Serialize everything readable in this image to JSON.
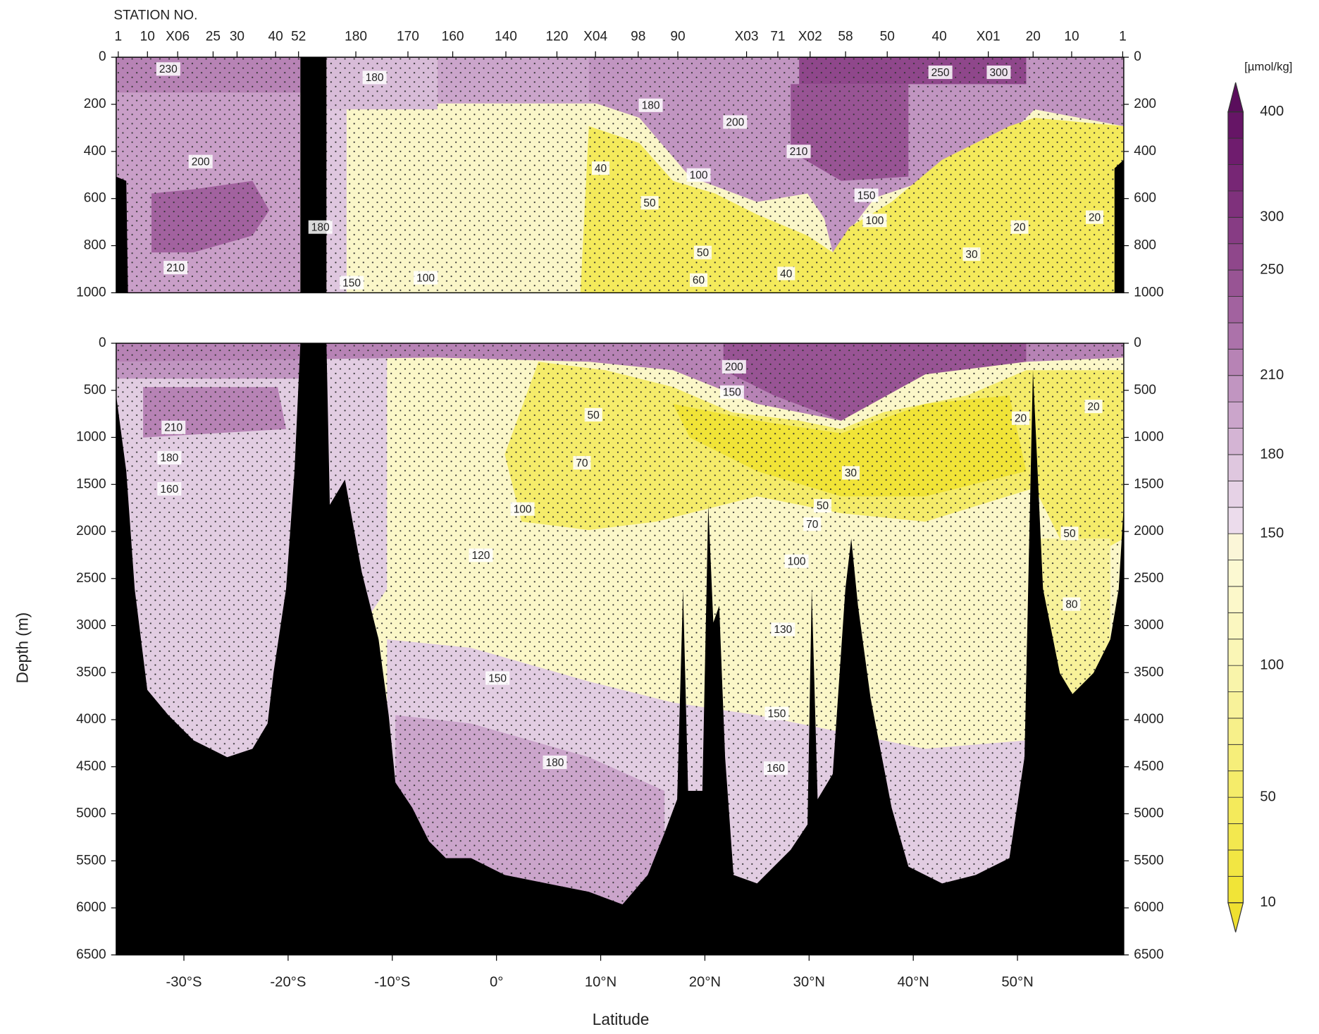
{
  "chart_data": [
    {
      "type": "contour",
      "x_label": "STATION NO.",
      "stations": [
        {
          "label": "1",
          "x": -36.3
        },
        {
          "label": "10",
          "x": -33.5
        },
        {
          "label": "X06",
          "x": -30.6
        },
        {
          "label": "25",
          "x": -27.2
        },
        {
          "label": "30",
          "x": -24.9
        },
        {
          "label": "40",
          "x": -21.2
        },
        {
          "label": "52",
          "x": -19.0
        },
        {
          "label": "180",
          "x": -13.5
        },
        {
          "label": "170",
          "x": -8.5
        },
        {
          "label": "160",
          "x": -4.2
        },
        {
          "label": "140",
          "x": 0.9
        },
        {
          "label": "120",
          "x": 5.8
        },
        {
          "label": "X04",
          "x": 9.5
        },
        {
          "label": "98",
          "x": 13.6
        },
        {
          "label": "90",
          "x": 17.4
        },
        {
          "label": "X03",
          "x": 24.0
        },
        {
          "label": "71",
          "x": 27.0
        },
        {
          "label": "X02",
          "x": 30.1
        },
        {
          "label": "58",
          "x": 33.5
        },
        {
          "label": "50",
          "x": 37.5
        },
        {
          "label": "40",
          "x": 42.5
        },
        {
          "label": "X01",
          "x": 47.2
        },
        {
          "label": "20",
          "x": 51.5
        },
        {
          "label": "10",
          "x": 55.2
        },
        {
          "label": "1",
          "x": 60.1
        }
      ],
      "xlim": [
        -36.5,
        60.2
      ],
      "ylim": [
        1000,
        0
      ],
      "yticks": [
        0,
        200,
        400,
        600,
        800,
        1000
      ],
      "contour_labels": [
        {
          "value": 230,
          "x": -31.5,
          "y": 50
        },
        {
          "value": 180,
          "x": -11.7,
          "y": 86
        },
        {
          "value": 250,
          "x": 42.6,
          "y": 64
        },
        {
          "value": 300,
          "x": 48.2,
          "y": 64
        },
        {
          "value": 180,
          "x": 14.8,
          "y": 204
        },
        {
          "value": 200,
          "x": 22.9,
          "y": 275
        },
        {
          "value": 210,
          "x": 29.0,
          "y": 400
        },
        {
          "value": 200,
          "x": -28.4,
          "y": 443
        },
        {
          "value": 40,
          "x": 10.0,
          "y": 471
        },
        {
          "value": 100,
          "x": 19.4,
          "y": 500
        },
        {
          "value": 150,
          "x": 35.5,
          "y": 586
        },
        {
          "value": 50,
          "x": 14.7,
          "y": 618
        },
        {
          "value": 100,
          "x": 36.3,
          "y": 693
        },
        {
          "value": 20,
          "x": 50.2,
          "y": 721
        },
        {
          "value": 20,
          "x": 57.4,
          "y": 679
        },
        {
          "value": 180,
          "x": -16.9,
          "y": 721
        },
        {
          "value": 50,
          "x": 19.8,
          "y": 829
        },
        {
          "value": 30,
          "x": 45.6,
          "y": 836
        },
        {
          "value": 210,
          "x": -30.8,
          "y": 893
        },
        {
          "value": 40,
          "x": 27.8,
          "y": 918
        },
        {
          "value": 100,
          "x": -6.8,
          "y": 936
        },
        {
          "value": 60,
          "x": 19.4,
          "y": 946
        },
        {
          "value": 150,
          "x": -13.9,
          "y": 957
        }
      ]
    },
    {
      "type": "contour",
      "x_label": "Latitude",
      "y_label": "Depth (m)",
      "xlim": [
        -36.5,
        60.2
      ],
      "xticks": [
        {
          "value": -30,
          "label": "-30°S"
        },
        {
          "value": -20,
          "label": "-20°S"
        },
        {
          "value": -10,
          "label": "-10°S"
        },
        {
          "value": 0,
          "label": "0°"
        },
        {
          "value": 10,
          "label": "10°N"
        },
        {
          "value": 20,
          "label": "20°N"
        },
        {
          "value": 30,
          "label": "30°N"
        },
        {
          "value": 40,
          "label": "40°N"
        },
        {
          "value": 50,
          "label": "50°N"
        }
      ],
      "ylim": [
        6500,
        0
      ],
      "yticks": [
        0,
        500,
        1000,
        1500,
        2000,
        2500,
        3000,
        3500,
        4000,
        4500,
        5000,
        5500,
        6000,
        6500
      ],
      "contour_labels": [
        {
          "value": 200,
          "x": 22.8,
          "y": 250
        },
        {
          "value": 150,
          "x": 22.6,
          "y": 519
        },
        {
          "value": 50,
          "x": 9.3,
          "y": 760
        },
        {
          "value": 20,
          "x": 50.3,
          "y": 796
        },
        {
          "value": 20,
          "x": 57.3,
          "y": 671
        },
        {
          "value": 210,
          "x": -31.0,
          "y": 894
        },
        {
          "value": 180,
          "x": -31.4,
          "y": 1216
        },
        {
          "value": 70,
          "x": 8.2,
          "y": 1270
        },
        {
          "value": 160,
          "x": -31.4,
          "y": 1547
        },
        {
          "value": 30,
          "x": 34.0,
          "y": 1377
        },
        {
          "value": 100,
          "x": 2.5,
          "y": 1761
        },
        {
          "value": 50,
          "x": 31.3,
          "y": 1726
        },
        {
          "value": 70,
          "x": 30.3,
          "y": 1922
        },
        {
          "value": 50,
          "x": 55.0,
          "y": 2021
        },
        {
          "value": 120,
          "x": -1.5,
          "y": 2253
        },
        {
          "value": 100,
          "x": 28.8,
          "y": 2316
        },
        {
          "value": 80,
          "x": 55.2,
          "y": 2772
        },
        {
          "value": 130,
          "x": 27.5,
          "y": 3040
        },
        {
          "value": 150,
          "x": 0.1,
          "y": 3558
        },
        {
          "value": 150,
          "x": 26.9,
          "y": 3934
        },
        {
          "value": 180,
          "x": 5.6,
          "y": 4453
        },
        {
          "value": 160,
          "x": 26.8,
          "y": 4515
        }
      ]
    },
    {
      "type": "colorbar",
      "title": "[µmol/kg]",
      "levels": [
        10,
        20,
        30,
        40,
        50,
        60,
        70,
        80,
        90,
        100,
        110,
        120,
        130,
        140,
        150,
        160,
        170,
        180,
        190,
        200,
        210,
        220,
        230,
        240,
        250,
        275,
        300,
        325,
        350,
        375,
        400
      ],
      "colors": [
        "#f1e437",
        "#f2e643",
        "#f3e84f",
        "#f4ea5b",
        "#f5ec6a",
        "#f6ee7a",
        "#f7f08a",
        "#f8f29a",
        "#f9f4aa",
        "#faf6b6",
        "#fbf7c0",
        "#fcf8ca",
        "#fcf9d2",
        "#fbf6d8",
        "#ecdcec",
        "#e6d2e6",
        "#dfc7df",
        "#d4b4d4",
        "#cba5cb",
        "#c195c1",
        "#b783b5",
        "#ac72aa",
        "#a2629f",
        "#985494",
        "#8f478b",
        "#873c84",
        "#7f317c",
        "#772675",
        "#6f1c6e",
        "#661566"
      ],
      "under_color": "#efe030",
      "over_color": "#5a0e5c",
      "ticks": [
        400,
        300,
        250,
        210,
        180,
        150,
        100,
        50,
        10
      ]
    }
  ]
}
